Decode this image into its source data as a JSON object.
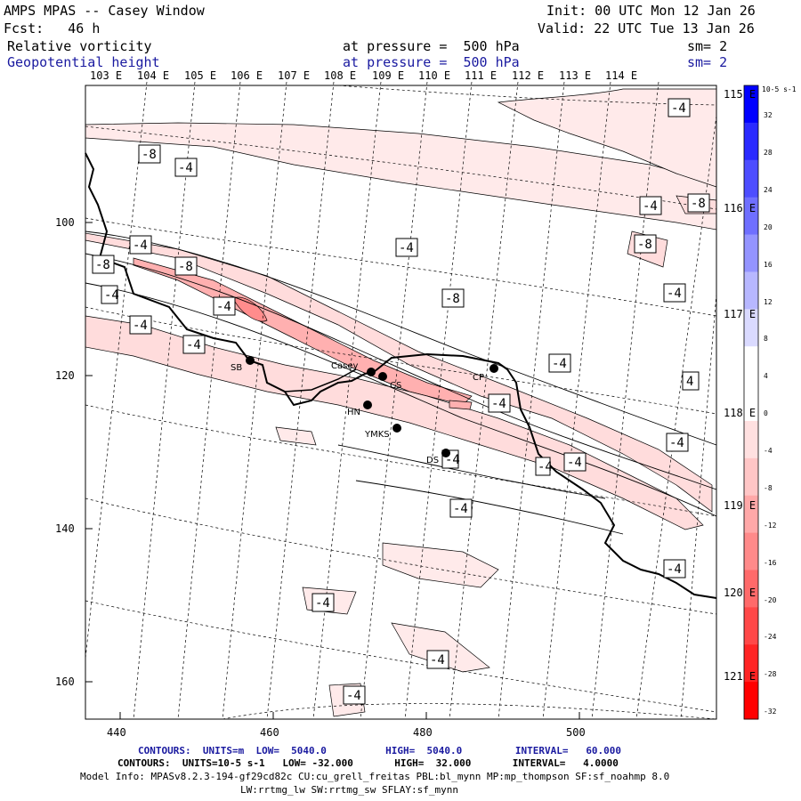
{
  "header": {
    "title": "AMPS MPAS -- Casey Window",
    "fcst": "Fcst:   46 h",
    "init": "Init: 00 UTC Mon 12 Jan 26",
    "valid": "Valid: 22 UTC Tue 13 Jan 26",
    "field1": "Relative vorticity",
    "field1_level": "at pressure =  500 hPa",
    "field1_sm": "sm= 2",
    "field2": "Geopotential height",
    "field2_level": "at pressure =  500 hPa",
    "field2_sm": "sm= 2"
  },
  "map": {
    "lon_labels_top": [
      "103 E",
      "104 E",
      "105 E",
      "106 E",
      "107 E",
      "108 E",
      "109 E",
      "110 E",
      "111 E",
      "112 E",
      "113 E",
      "114 E"
    ],
    "lon_labels_right": [
      "115 E",
      "116 E",
      "117 E",
      "118 E",
      "119 E",
      "120 E",
      "121 E"
    ],
    "y_ticks": [
      "100",
      "120",
      "140",
      "160"
    ],
    "x_ticks": [
      "440",
      "460",
      "480",
      "500"
    ],
    "contour_labels": [
      "-4",
      "-8",
      "-8",
      "-4",
      "-4",
      "-8",
      "-4",
      "-8",
      "-4",
      "-4",
      "-4",
      "-8",
      "-4",
      "-4",
      "-4",
      "-8",
      "-4",
      "-4",
      "-4",
      "-4",
      "-4",
      "-4",
      "4",
      "-4",
      "-4",
      "-4",
      "-4",
      "-4",
      "-4",
      "-4",
      "-4"
    ],
    "stations": [
      {
        "name": "SB"
      },
      {
        "name": "Casey"
      },
      {
        "name": "CS"
      },
      {
        "name": "CP"
      },
      {
        "name": "HN"
      },
      {
        "name": "YMKS"
      },
      {
        "name": "DS"
      }
    ]
  },
  "colorbar": {
    "unit": "10-5 s-1",
    "labels": [
      "32",
      "28",
      "24",
      "20",
      "16",
      "12",
      "8",
      "4",
      "0",
      "-4",
      "-8",
      "-12",
      "-16",
      "-20",
      "-24",
      "-28",
      "-32"
    ],
    "colors": [
      "#0000ff",
      "#2a2aff",
      "#4d4dff",
      "#6f6fff",
      "#9494ff",
      "#b7b7ff",
      "#dadaff",
      "#ffffff",
      "#ffffff",
      "#ffe0e0",
      "#ffc6c6",
      "#ffa8a8",
      "#ff8a8a",
      "#ff6a6a",
      "#ff4848",
      "#ff2424",
      "#ff0000"
    ]
  },
  "footer": {
    "line1": "CONTOURS:  UNITS=m  LOW=  5040.0          HIGH=  5040.0         INTERVAL=   60.000",
    "line2": "CONTOURS:  UNITS=10-5 s-1   LOW= -32.000       HIGH=  32.000       INTERVAL=   4.0000",
    "line3": "Model Info: MPASv8.2.3-194-gf29cd82c CU:cu_grell_freitas PBL:bl_mynn MP:mp_thompson SF:sf_noahmp 8.0",
    "line4": "LW:rrtmg_lw SW:rrtmg_sw SFLAY:sf_mynn"
  }
}
